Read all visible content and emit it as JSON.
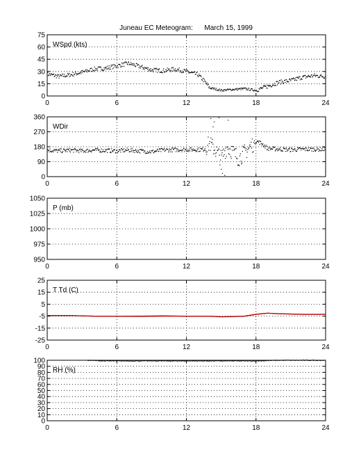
{
  "title": "Juneau EC Meteogram:      March 15, 1999",
  "chart_data": [
    {
      "type": "scatter",
      "panel_label": "WSpd (kts)",
      "xlim": [
        0,
        24
      ],
      "xticks": [
        0,
        6,
        12,
        18,
        24
      ],
      "ylim": [
        0,
        75
      ],
      "yticks": [
        0,
        15,
        30,
        45,
        60,
        75
      ],
      "grid": true,
      "series": [
        {
          "color": "#000000",
          "x": [
            0,
            1,
            2,
            3,
            4,
            5,
            6,
            7,
            8,
            9,
            10,
            11,
            12,
            13,
            13.5,
            14,
            15,
            16,
            17,
            18,
            19,
            20,
            21,
            22,
            23,
            24
          ],
          "y": [
            27,
            24,
            26,
            29,
            33,
            34,
            37,
            40,
            36,
            32,
            31,
            33,
            30,
            26,
            19,
            10,
            7,
            8,
            9,
            7,
            12,
            17,
            19,
            23,
            25,
            24
          ]
        }
      ]
    },
    {
      "type": "scatter",
      "panel_label": "WDir",
      "xlim": [
        0,
        24
      ],
      "xticks": [
        0,
        6,
        12,
        18,
        24
      ],
      "ylim": [
        0,
        360
      ],
      "yticks": [
        0,
        90,
        180,
        270,
        360
      ],
      "grid": true,
      "series": [
        {
          "color": "#000000",
          "x": [
            0,
            1,
            2,
            3,
            4,
            5,
            6,
            7,
            8,
            9,
            10,
            11,
            12,
            13,
            13.5,
            14,
            14.5,
            15,
            15.5,
            16,
            16.5,
            17,
            17.5,
            18,
            18.5,
            19,
            20,
            21,
            22,
            23,
            24
          ],
          "y": [
            160,
            155,
            160,
            155,
            160,
            158,
            155,
            160,
            155,
            150,
            160,
            162,
            163,
            163,
            165,
            200,
            160,
            110,
            180,
            150,
            110,
            145,
            180,
            215,
            200,
            170,
            165,
            162,
            165,
            165,
            165
          ]
        }
      ]
    },
    {
      "type": "line",
      "panel_label": "P (mb)",
      "xlim": [
        0,
        24
      ],
      "xticks": [
        0,
        6,
        12,
        18,
        24
      ],
      "ylim": [
        950,
        1050
      ],
      "yticks": [
        950,
        975,
        1000,
        1025,
        1050
      ],
      "grid": true,
      "series": []
    },
    {
      "type": "line",
      "panel_label": "T Td (C)",
      "xlim": [
        0,
        24
      ],
      "xticks": [
        0,
        6,
        12,
        18,
        24
      ],
      "ylim": [
        -25,
        25
      ],
      "yticks": [
        -25,
        -15,
        -5,
        5,
        15,
        25
      ],
      "grid": true,
      "series": [
        {
          "color": "#000000",
          "x": [
            0,
            2,
            4,
            6,
            8,
            10,
            12,
            14,
            15,
            16,
            17,
            18,
            19,
            20,
            22,
            24
          ],
          "y": [
            -4.5,
            -4.5,
            -5,
            -5,
            -5,
            -4.8,
            -5,
            -5,
            -5.5,
            -5.3,
            -5,
            -3.5,
            -2.5,
            -3,
            -3.5,
            -3.5
          ]
        },
        {
          "color": "#cc0000",
          "x": [
            0,
            2,
            4,
            6,
            8,
            10,
            12,
            14,
            15,
            16,
            17,
            18,
            19,
            20,
            22,
            24
          ],
          "y": [
            -4.5,
            -4.5,
            -5,
            -5,
            -5.2,
            -5,
            -5,
            -5,
            -5.6,
            -5.4,
            -5,
            -3.5,
            -2.5,
            -3,
            -3.5,
            -3.5
          ]
        }
      ]
    },
    {
      "type": "scatter",
      "panel_label": "RH (%)",
      "xlim": [
        0,
        24
      ],
      "xticks": [
        0,
        6,
        12,
        18,
        24
      ],
      "ylim": [
        0,
        100
      ],
      "yticks": [
        0,
        10,
        20,
        30,
        40,
        50,
        60,
        70,
        80,
        90,
        100
      ],
      "grid": true,
      "series": [
        {
          "color": "#000000",
          "x": [
            3.5,
            5,
            6,
            8,
            10,
            12,
            14,
            16,
            18,
            20,
            22,
            24
          ],
          "y": [
            100,
            99,
            99,
            99,
            99,
            99,
            99,
            99,
            99,
            100,
            100,
            100
          ]
        }
      ]
    }
  ]
}
